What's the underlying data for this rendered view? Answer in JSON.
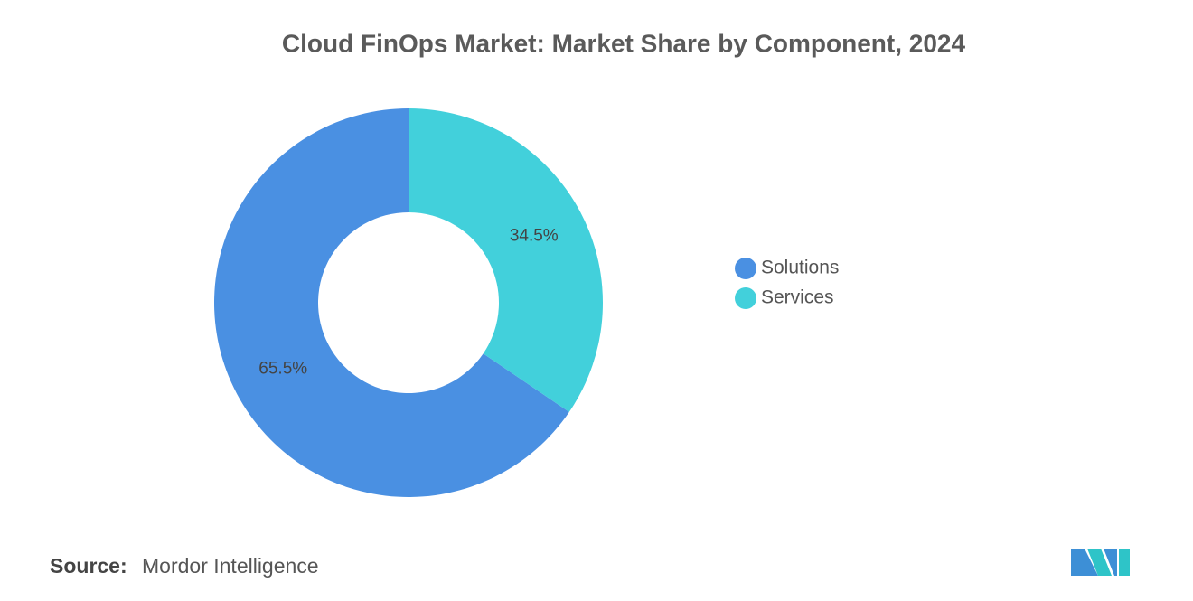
{
  "chart_data": {
    "type": "pie",
    "title": "Cloud FinOps Market: Market Share by Component, 2024",
    "categories": [
      "Solutions",
      "Services"
    ],
    "values": [
      65.5,
      34.5
    ],
    "value_labels": [
      "65.5%",
      "34.5%"
    ],
    "colors": [
      "#4a90e2",
      "#42d0db"
    ],
    "donut": true,
    "legend": "right"
  },
  "footer": {
    "source_label": "Source:",
    "source": "Mordor Intelligence"
  }
}
